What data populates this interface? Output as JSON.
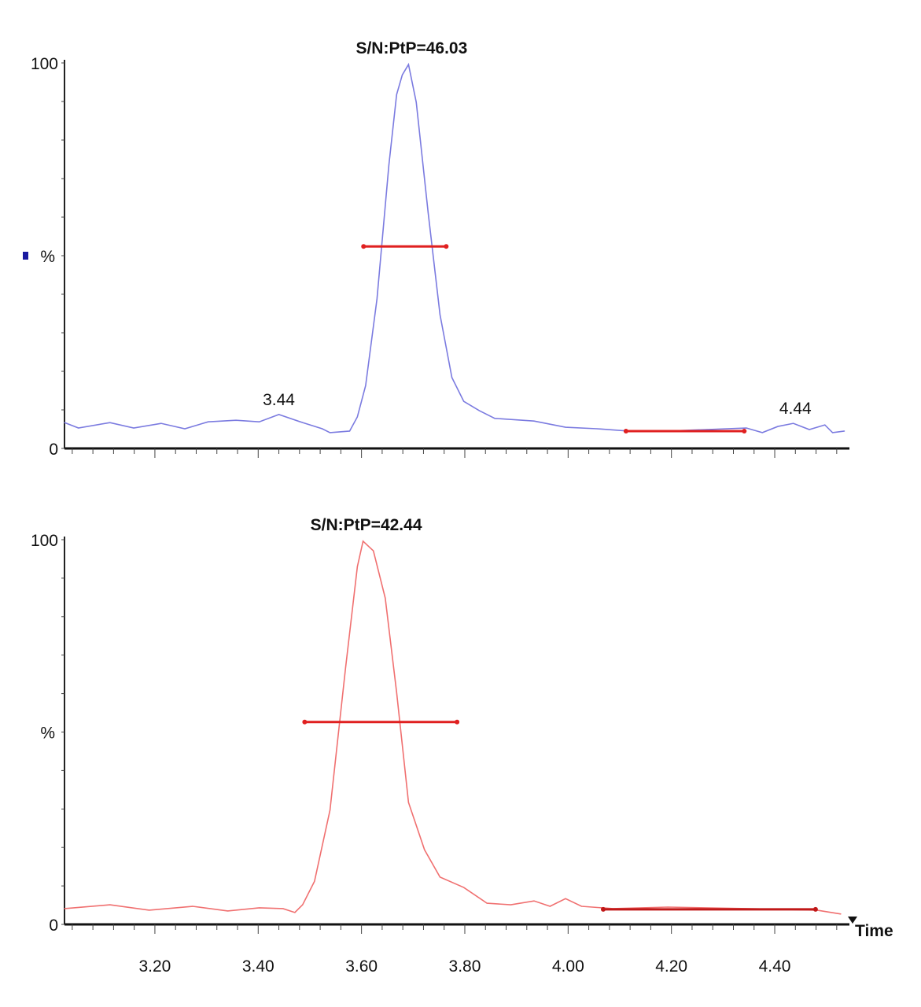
{
  "chart_data": [
    {
      "type": "line",
      "title": "S/N:PtP=46.03",
      "ylabel": "%",
      "xlabel": "",
      "xlim": [
        3.025,
        4.537
      ],
      "ylim": [
        0,
        100
      ],
      "yticks": [
        "0",
        "100"
      ],
      "show_x_tick_labels": false,
      "legend_marker_color": "#1a1aa0",
      "line_color": "#7b7be0",
      "annotations": [
        {
          "text": "3.44",
          "x": 3.44,
          "y": 8.8
        },
        {
          "text": "4.44",
          "x": 4.44,
          "y": 6.5
        }
      ],
      "width_bars": [
        {
          "x_start": 3.604,
          "x_end": 3.764,
          "y": 52.4,
          "color": "#e02020"
        },
        {
          "x_start": 4.112,
          "x_end": 4.341,
          "y": 4.5,
          "color": "#e02020"
        }
      ],
      "series": [
        {
          "x": [
            3.025,
            3.052,
            3.113,
            3.159,
            3.212,
            3.258,
            3.303,
            3.357,
            3.402,
            3.44,
            3.486,
            3.524,
            3.539,
            3.577,
            3.592,
            3.608,
            3.63,
            3.653,
            3.668,
            3.679,
            3.691,
            3.706,
            3.729,
            3.752,
            3.775,
            3.798,
            3.828,
            3.858,
            3.934,
            3.995,
            4.056,
            4.117,
            4.193,
            4.269,
            4.345,
            4.376,
            4.406,
            4.436,
            4.467,
            4.497,
            4.512,
            4.535
          ],
          "y": [
            6.7,
            5.3,
            6.7,
            5.3,
            6.5,
            5.1,
            6.9,
            7.3,
            6.9,
            8.8,
            6.7,
            5.1,
            4.1,
            4.5,
            8.2,
            16.3,
            38.8,
            73.5,
            91.8,
            96.9,
            99.6,
            89.8,
            61.2,
            34.7,
            18.4,
            12.2,
            9.8,
            7.8,
            7.1,
            5.5,
            5.1,
            4.5,
            4.5,
            4.9,
            5.3,
            4.1,
            5.7,
            6.5,
            4.9,
            6.1,
            4.1,
            4.5
          ]
        }
      ]
    },
    {
      "type": "line",
      "title": "S/N:PtP=42.44",
      "ylabel": "%",
      "xlabel": "Time",
      "xlim": [
        3.025,
        4.537
      ],
      "ylim": [
        0,
        100
      ],
      "yticks": [
        "0",
        "100"
      ],
      "xticks": [
        "3.20",
        "3.40",
        "3.60",
        "3.80",
        "4.00",
        "4.20",
        "4.40"
      ],
      "line_color": "#f07070",
      "width_bars": [
        {
          "x_start": 3.49,
          "x_end": 3.785,
          "y": 52.6,
          "color": "#e02020"
        },
        {
          "x_start": 4.068,
          "x_end": 4.479,
          "y": 3.9,
          "color": "#c01818"
        }
      ],
      "series": [
        {
          "x": [
            3.025,
            3.113,
            3.189,
            3.273,
            3.341,
            3.402,
            3.448,
            3.471,
            3.486,
            3.509,
            3.539,
            3.569,
            3.592,
            3.603,
            3.623,
            3.646,
            3.668,
            3.691,
            3.722,
            3.752,
            3.798,
            3.843,
            3.889,
            3.934,
            3.965,
            3.995,
            4.026,
            4.087,
            4.193,
            4.345,
            4.482,
            4.528
          ],
          "y": [
            4.1,
            5.1,
            3.7,
            4.7,
            3.5,
            4.3,
            4.1,
            3.1,
            5.1,
            11.2,
            29.7,
            66.5,
            93.0,
            99.6,
            97.1,
            84.8,
            60.3,
            31.7,
            19.4,
            12.3,
            9.6,
            5.5,
            5.1,
            6.1,
            4.7,
            6.7,
            4.7,
            4.1,
            4.5,
            4.1,
            3.7,
            2.7
          ]
        }
      ]
    }
  ]
}
